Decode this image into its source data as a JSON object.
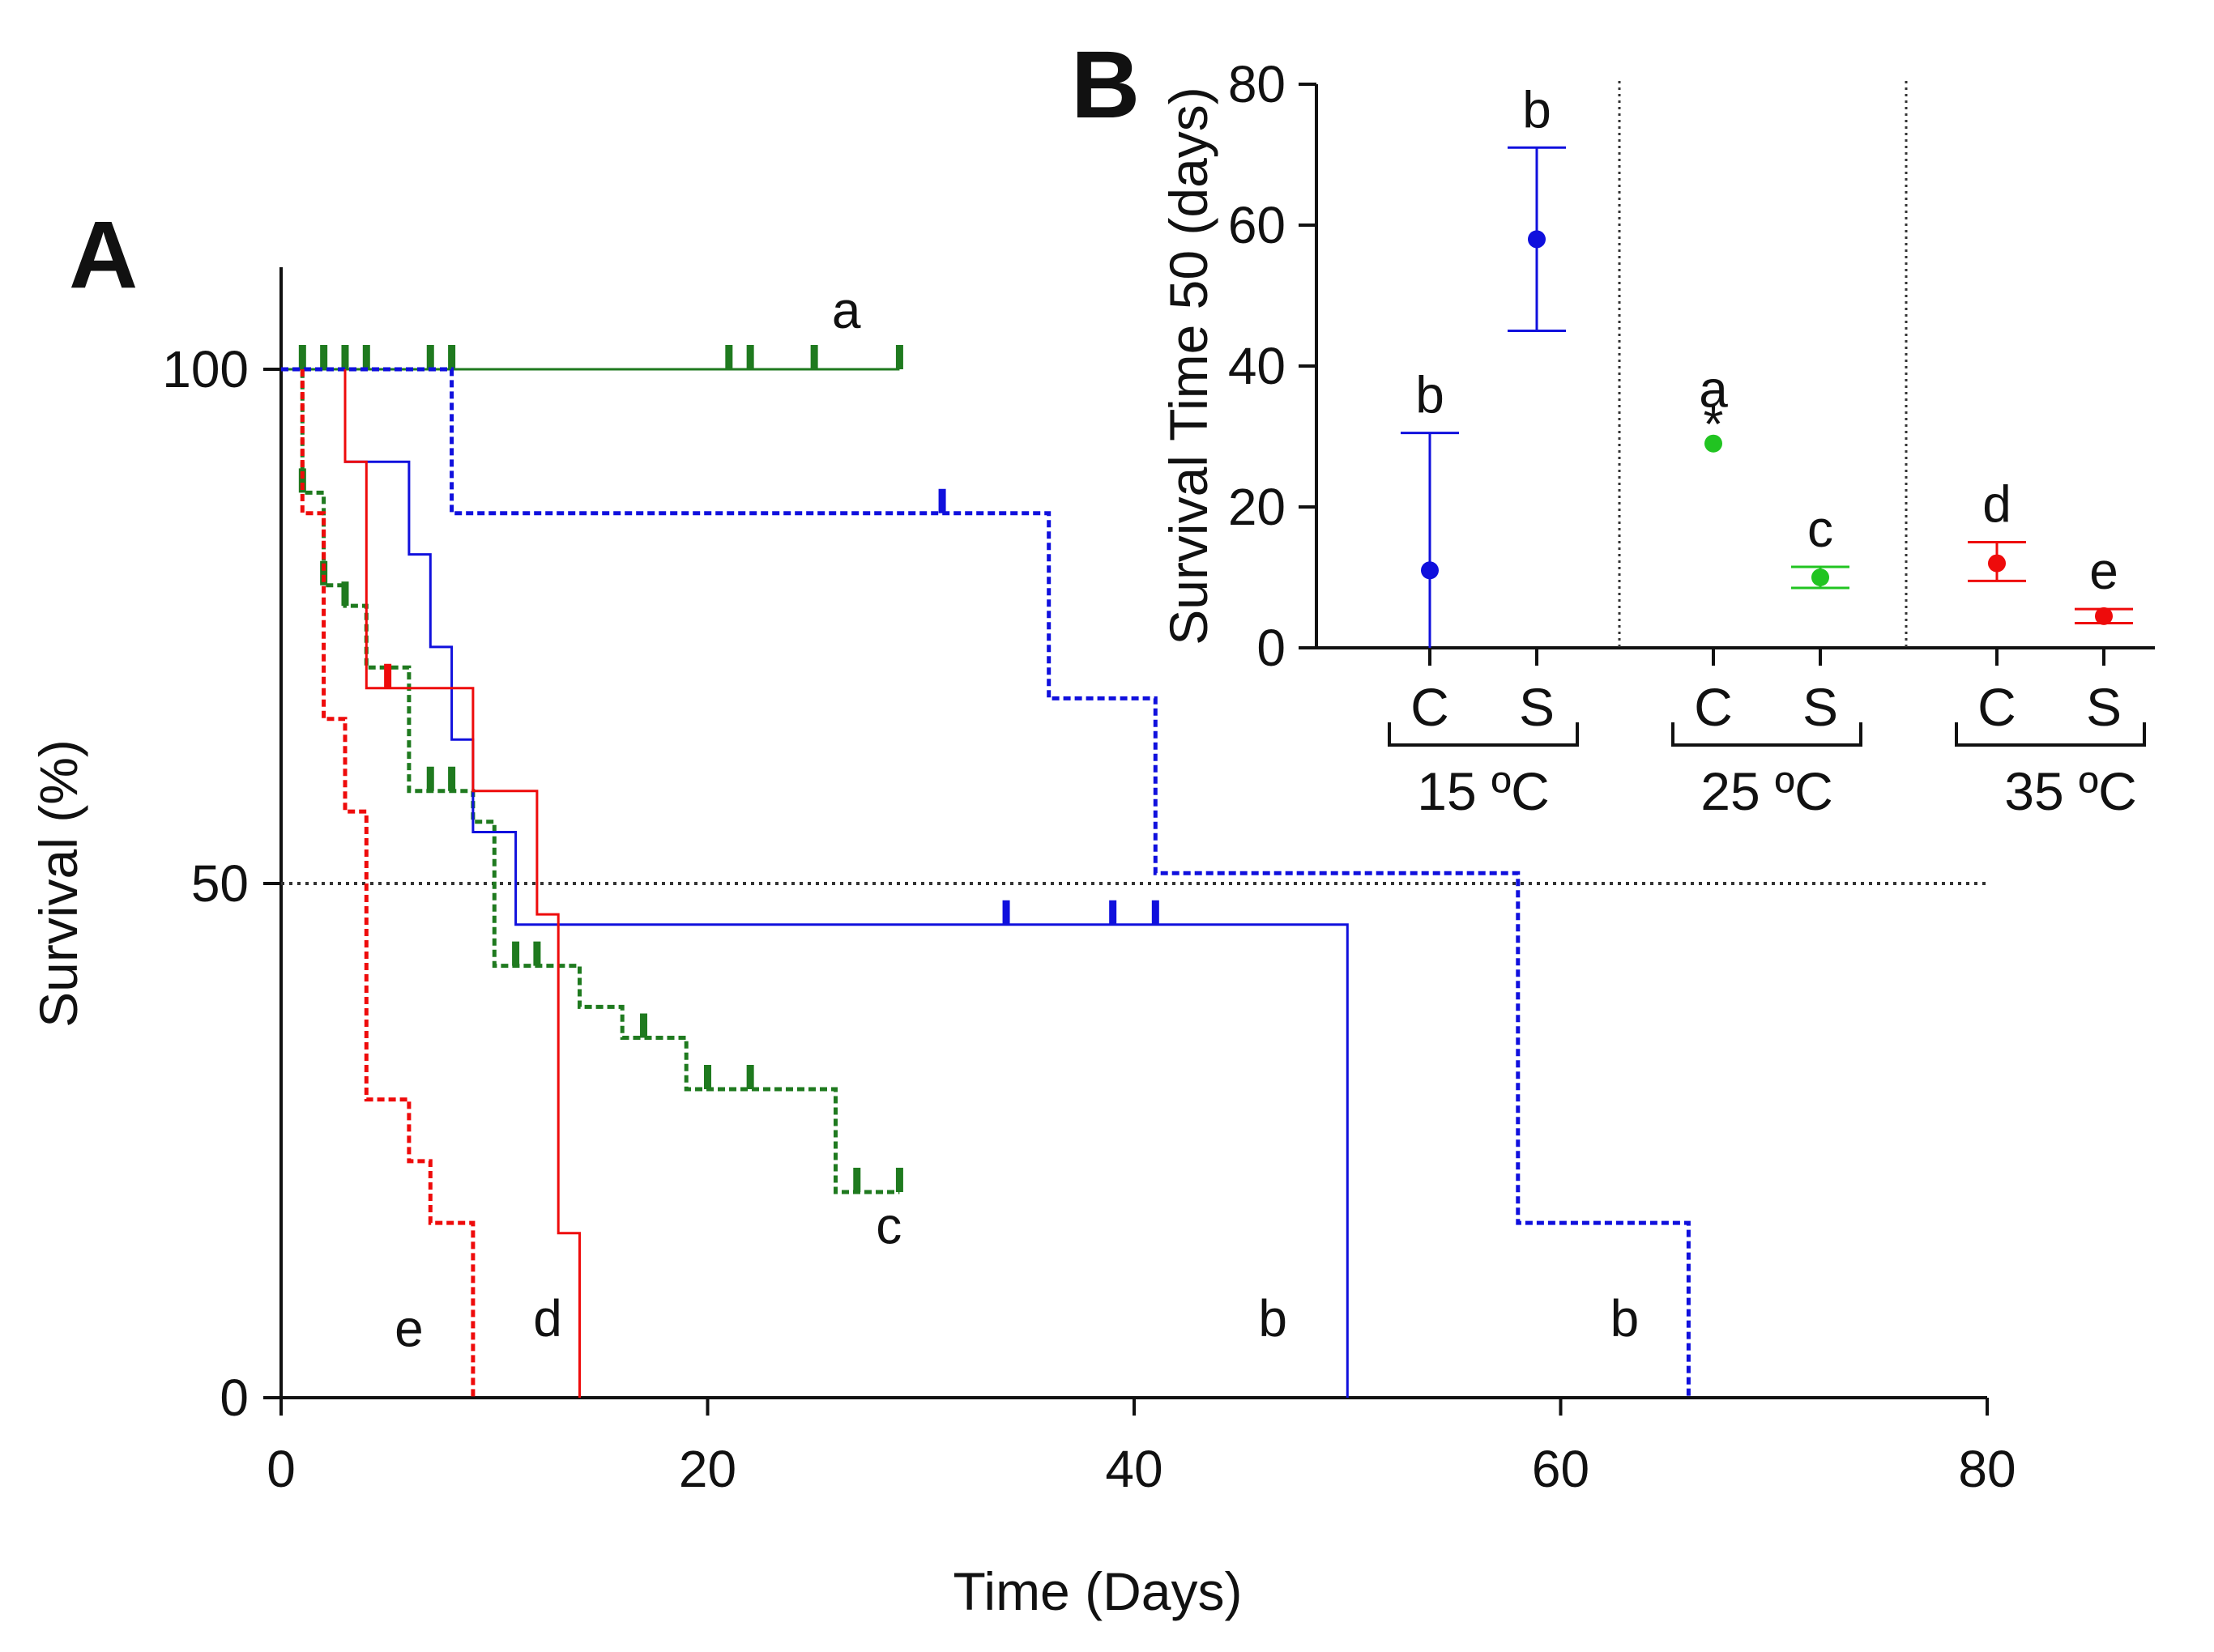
{
  "colors": {
    "green": "#1f7a1f",
    "green_light": "#21c421",
    "blue": "#1010dd",
    "red": "#ee0b0b",
    "axis": "#111111",
    "reference": "#333333"
  },
  "chart_data": [
    {
      "panel": "A",
      "type": "line",
      "subtype": "kaplan-meier step survival curves",
      "panel_label": "A",
      "xlabel": "Time (Days)",
      "ylabel": "Survival (%)",
      "xlim": [
        0,
        80
      ],
      "ylim": [
        0,
        100
      ],
      "xticks": [
        "0",
        "20",
        "40",
        "60",
        "80"
      ],
      "yticks": [
        "0",
        "50",
        "100"
      ],
      "reference_line_y": 50,
      "series": [
        {
          "name": "a",
          "label": "a",
          "color": "green",
          "style": "solid",
          "steps": [
            [
              0,
              100
            ],
            [
              29,
              100
            ]
          ],
          "censor_marks": [
            [
              1,
              100
            ],
            [
              2,
              100
            ],
            [
              3,
              100
            ],
            [
              4,
              100
            ],
            [
              7,
              100
            ],
            [
              8,
              100
            ],
            [
              21,
              100
            ],
            [
              22,
              100
            ],
            [
              25,
              100
            ],
            [
              29,
              100
            ]
          ],
          "label_at": [
            26.5,
            104
          ]
        },
        {
          "name": "c",
          "label": "c",
          "color": "green",
          "style": "dashed",
          "steps": [
            [
              0,
              100
            ],
            [
              1,
              100
            ],
            [
              1,
              88
            ],
            [
              2,
              88
            ],
            [
              2,
              79
            ],
            [
              3,
              79
            ],
            [
              3,
              77
            ],
            [
              4,
              77
            ],
            [
              4,
              71
            ],
            [
              6,
              71
            ],
            [
              6,
              59
            ],
            [
              9,
              59
            ],
            [
              9,
              56
            ],
            [
              10,
              56
            ],
            [
              10,
              42
            ],
            [
              14,
              42
            ],
            [
              14,
              38
            ],
            [
              16,
              38
            ],
            [
              16,
              35
            ],
            [
              19,
              35
            ],
            [
              19,
              30
            ],
            [
              26,
              30
            ],
            [
              26,
              20
            ],
            [
              29,
              20
            ]
          ],
          "censor_marks": [
            [
              1,
              88
            ],
            [
              2,
              79
            ],
            [
              3,
              77
            ],
            [
              7,
              59
            ],
            [
              8,
              59
            ],
            [
              11,
              42
            ],
            [
              12,
              42
            ],
            [
              17,
              35
            ],
            [
              20,
              30
            ],
            [
              22,
              30
            ],
            [
              27,
              20
            ],
            [
              29,
              20
            ]
          ],
          "label_at": [
            28.5,
            15
          ]
        },
        {
          "name": "b (solid)",
          "label": "b",
          "color": "blue",
          "style": "solid",
          "steps": [
            [
              3,
              100
            ],
            [
              3,
              91
            ],
            [
              6,
              91
            ],
            [
              6,
              82
            ],
            [
              7,
              82
            ],
            [
              7,
              73
            ],
            [
              8,
              73
            ],
            [
              8,
              64
            ],
            [
              9,
              64
            ],
            [
              9,
              55
            ],
            [
              11,
              55
            ],
            [
              11,
              46
            ],
            [
              50,
              46
            ],
            [
              50,
              0
            ]
          ],
          "censor_marks": [
            [
              34,
              46
            ],
            [
              39,
              46
            ],
            [
              41,
              46
            ]
          ],
          "label_at": [
            46.5,
            6
          ]
        },
        {
          "name": "b (dashed)",
          "label": "b",
          "color": "blue",
          "style": "dashed",
          "steps": [
            [
              0,
              100
            ],
            [
              8,
              100
            ],
            [
              8,
              86
            ],
            [
              36,
              86
            ],
            [
              36,
              68
            ],
            [
              41,
              68
            ],
            [
              41,
              51
            ],
            [
              58,
              51
            ],
            [
              58,
              17
            ],
            [
              66,
              17
            ],
            [
              66,
              0
            ]
          ],
          "censor_marks": [
            [
              31,
              86
            ]
          ],
          "label_at": [
            63,
            6
          ]
        },
        {
          "name": "d",
          "label": "d",
          "color": "red",
          "style": "solid",
          "steps": [
            [
              3,
              100
            ],
            [
              3,
              91
            ],
            [
              4,
              91
            ],
            [
              4,
              69
            ],
            [
              9,
              69
            ],
            [
              9,
              59
            ],
            [
              12,
              59
            ],
            [
              12,
              47
            ],
            [
              13,
              47
            ],
            [
              13,
              16
            ],
            [
              14,
              16
            ],
            [
              14,
              0
            ]
          ],
          "censor_marks": [
            [
              5,
              69
            ]
          ],
          "label_at": [
            12.5,
            6
          ]
        },
        {
          "name": "e",
          "label": "e",
          "color": "red",
          "style": "dashed",
          "steps": [
            [
              1,
              100
            ],
            [
              1,
              86
            ],
            [
              2,
              86
            ],
            [
              2,
              66
            ],
            [
              3,
              66
            ],
            [
              3,
              57
            ],
            [
              4,
              57
            ],
            [
              4,
              29
            ],
            [
              6,
              29
            ],
            [
              6,
              23
            ],
            [
              7,
              23
            ],
            [
              7,
              17
            ],
            [
              9,
              17
            ],
            [
              9,
              0
            ]
          ],
          "censor_marks": [],
          "label_at": [
            6,
            5
          ]
        }
      ]
    },
    {
      "panel": "B",
      "type": "scatter",
      "subtype": "point estimate with error bars",
      "panel_label": "B",
      "ylabel": "Survival Time 50 (days)",
      "ylim": [
        0,
        80
      ],
      "yticks": [
        "0",
        "20",
        "40",
        "60",
        "80"
      ],
      "categories": [
        "C",
        "S",
        "C",
        "S",
        "C",
        "S"
      ],
      "groups": [
        "15 ºC",
        "25 ºC",
        "35 ºC"
      ],
      "points": [
        {
          "group": "15 ºC",
          "category": "C",
          "value": 11,
          "lower": 0,
          "upper": 30.5,
          "color": "blue",
          "label": "b",
          "marker": ""
        },
        {
          "group": "15 ºC",
          "category": "S",
          "value": 58,
          "lower": 45,
          "upper": 71,
          "color": "blue",
          "label": "b",
          "marker": ""
        },
        {
          "group": "25 ºC",
          "category": "C",
          "value": 29,
          "lower": 29,
          "upper": 29,
          "color": "green_light",
          "label": "a",
          "marker": "*"
        },
        {
          "group": "25 ºC",
          "category": "S",
          "value": 10,
          "lower": 8.5,
          "upper": 11.5,
          "color": "green_light",
          "label": "c",
          "marker": ""
        },
        {
          "group": "35 ºC",
          "category": "C",
          "value": 12,
          "lower": 9.5,
          "upper": 15,
          "color": "red",
          "label": "d",
          "marker": ""
        },
        {
          "group": "35 ºC",
          "category": "S",
          "value": 4.5,
          "lower": 3.5,
          "upper": 5.5,
          "color": "red",
          "label": "e",
          "marker": ""
        }
      ]
    }
  ]
}
